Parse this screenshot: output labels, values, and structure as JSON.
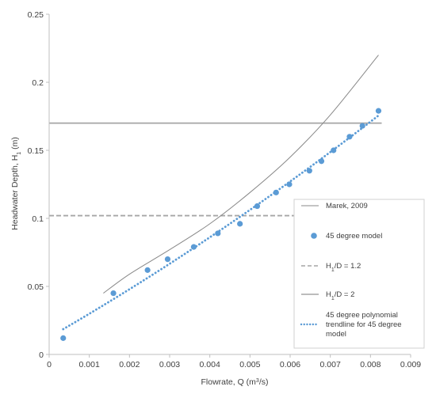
{
  "chart_data": {
    "type": "scatter",
    "xlabel": {
      "prefix": "Flowrate, Q (m",
      "sup": "3",
      "suffix": "/s)"
    },
    "ylabel": {
      "prefix": "Headwater Depth, H",
      "sub": "1",
      "suffix": " (m)"
    },
    "xlim": [
      0,
      0.009
    ],
    "ylim": [
      0,
      0.25
    ],
    "xticks": [
      "0",
      "0.001",
      "0.002",
      "0.003",
      "0.004",
      "0.005",
      "0.006",
      "0.007",
      "0.008",
      "0.009"
    ],
    "yticks": [
      "0",
      "0.05",
      "0.1",
      "0.15",
      "0.2",
      "0.25"
    ],
    "grid": false,
    "legend_position": "right",
    "colors": {
      "marek": "#888888",
      "model": "#5b9bd5",
      "dashed_ref": "#a6a6a6",
      "solid_ref": "#a6a6a6",
      "trendline": "#5b9bd5",
      "axis": "#bfbfbf"
    },
    "series": [
      {
        "id": "marek",
        "kind": "line",
        "name": "Marek, 2009",
        "x": [
          0.00135,
          0.002,
          0.003,
          0.004,
          0.005,
          0.006,
          0.007,
          0.0082
        ],
        "y": [
          0.045,
          0.059,
          0.077,
          0.096,
          0.119,
          0.145,
          0.176,
          0.22
        ]
      },
      {
        "id": "model",
        "kind": "points",
        "name": "45 degree model",
        "x": [
          0.00035,
          0.0016,
          0.00245,
          0.00295,
          0.0036,
          0.0042,
          0.00475,
          0.00518,
          0.00565,
          0.00598,
          0.00648,
          0.00678,
          0.00708,
          0.00748,
          0.0078,
          0.0082
        ],
        "y": [
          0.012,
          0.045,
          0.062,
          0.07,
          0.079,
          0.089,
          0.096,
          0.109,
          0.119,
          0.125,
          0.135,
          0.142,
          0.15,
          0.16,
          0.168,
          0.179
        ]
      },
      {
        "id": "hd12",
        "kind": "hline-dashed",
        "name_main": "H",
        "name_sub": "1",
        "name_rest": "/D = 1.2",
        "y": 0.102
      },
      {
        "id": "hd2",
        "kind": "hline-solid",
        "name_main": "H",
        "name_sub": "1",
        "name_rest": "/D = 2",
        "y": 0.17
      },
      {
        "id": "trend",
        "kind": "trendline",
        "name_lines": [
          "45 degree polynomial",
          "trendline for 45 degree",
          "model"
        ],
        "x": [
          0.00035,
          0.0016,
          0.00245,
          0.00295,
          0.0036,
          0.0042,
          0.00475,
          0.00518,
          0.00565,
          0.00598,
          0.00648,
          0.00678,
          0.00708,
          0.00748,
          0.0078,
          0.0082
        ],
        "y": [
          0.012,
          0.045,
          0.062,
          0.07,
          0.079,
          0.089,
          0.096,
          0.109,
          0.119,
          0.125,
          0.135,
          0.142,
          0.15,
          0.16,
          0.168,
          0.179
        ]
      }
    ]
  }
}
